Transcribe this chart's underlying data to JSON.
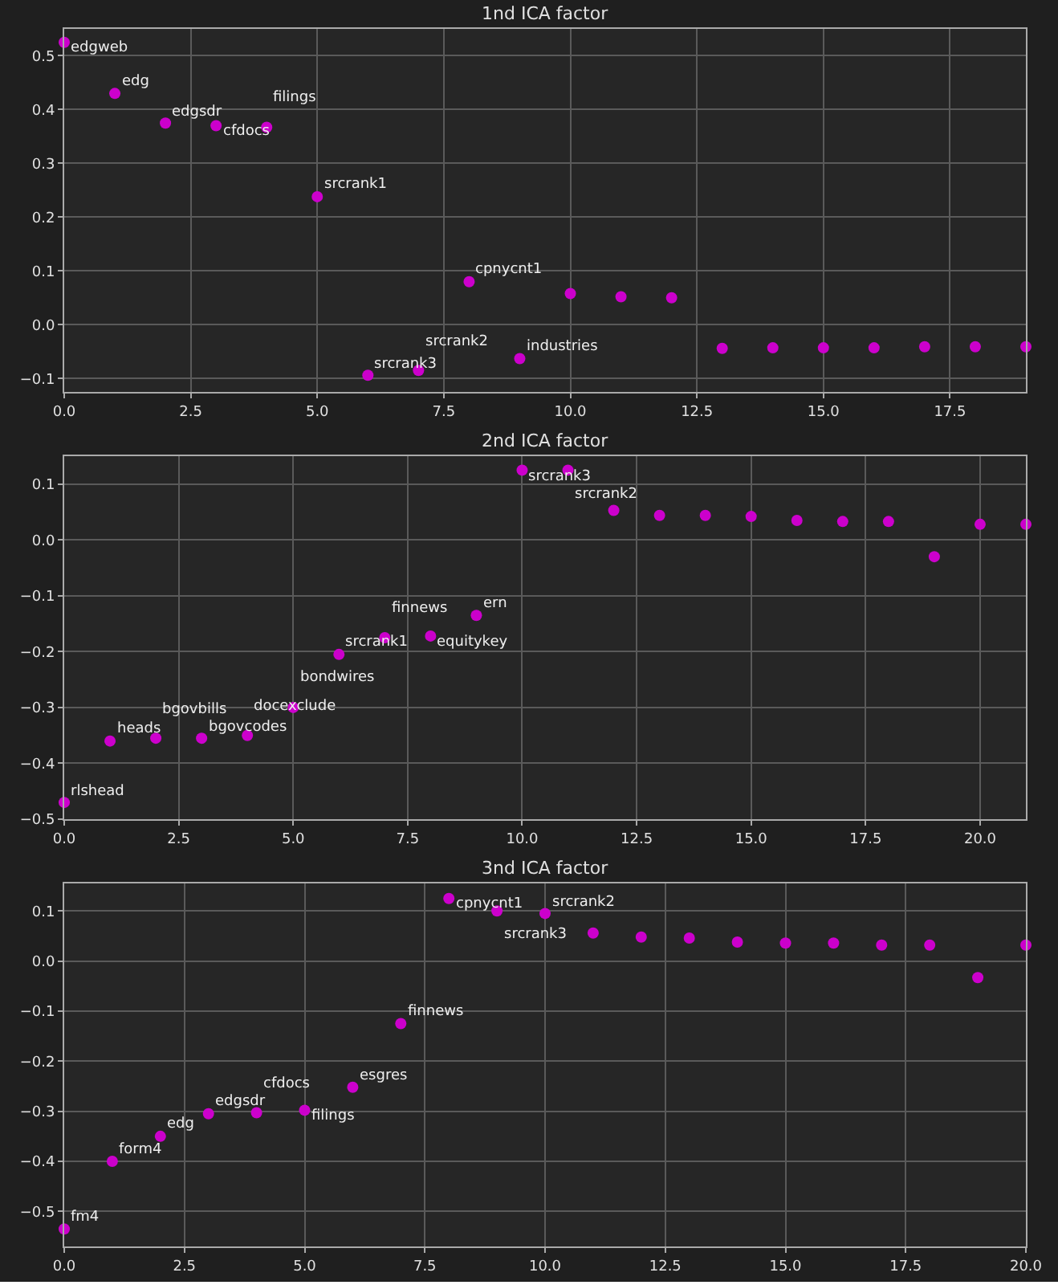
{
  "chart_data": [
    {
      "type": "scatter",
      "title": "1nd ICA factor",
      "color": "#cc00cc",
      "marker": "circle",
      "grid": true,
      "x": [
        0,
        1,
        2,
        3,
        4,
        5,
        6,
        7,
        8,
        9,
        10,
        11,
        12,
        13,
        14,
        15,
        16,
        17,
        18,
        19
      ],
      "values": [
        0.525,
        0.43,
        0.375,
        0.37,
        0.367,
        0.238,
        -0.094,
        -0.085,
        0.08,
        -0.063,
        0.058,
        0.052,
        0.05,
        -0.044,
        -0.043,
        -0.043,
        -0.043,
        -0.041,
        -0.041,
        -0.041
      ],
      "xlim": [
        0,
        19
      ],
      "ylim": [
        -0.125,
        0.55
      ],
      "xticks": [
        {
          "value": 0,
          "label": "0.0"
        },
        {
          "value": 2.5,
          "label": "2.5"
        },
        {
          "value": 5,
          "label": "5.0"
        },
        {
          "value": 7.5,
          "label": "7.5"
        },
        {
          "value": 10,
          "label": "10.0"
        },
        {
          "value": 12.5,
          "label": "12.5"
        },
        {
          "value": 15,
          "label": "15.0"
        },
        {
          "value": 17.5,
          "label": "17.5"
        }
      ],
      "yticks": [
        {
          "value": -0.1,
          "label": "−0.1"
        },
        {
          "value": 0,
          "label": "0.0"
        },
        {
          "value": 0.1,
          "label": "0.1"
        },
        {
          "value": 0.2,
          "label": "0.2"
        },
        {
          "value": 0.3,
          "label": "0.3"
        },
        {
          "value": 0.4,
          "label": "0.4"
        },
        {
          "value": 0.5,
          "label": "0.5"
        }
      ],
      "annotations": [
        {
          "text": "edgweb",
          "x": 0,
          "y": 0.525
        },
        {
          "text": "edg",
          "x": 1,
          "y": 0.43
        },
        {
          "text": "edgsdr",
          "x": 2,
          "y": 0.375
        },
        {
          "text": "cfdocs",
          "x": 3,
          "y": 0.37
        },
        {
          "text": "filings",
          "x": 4,
          "y": 0.367
        },
        {
          "text": "srcrank1",
          "x": 5,
          "y": 0.238
        },
        {
          "text": "srcrank3",
          "x": 6,
          "y": -0.094
        },
        {
          "text": "srcrank2",
          "x": 7,
          "y": -0.085
        },
        {
          "text": "cpnycnt1",
          "x": 8,
          "y": 0.08
        },
        {
          "text": "industries",
          "x": 9,
          "y": -0.063
        }
      ]
    },
    {
      "type": "scatter",
      "title": "2nd ICA factor",
      "color": "#cc00cc",
      "marker": "circle",
      "grid": true,
      "x": [
        0,
        1,
        2,
        3,
        4,
        5,
        6,
        7,
        8,
        9,
        10,
        11,
        12,
        13,
        14,
        15,
        16,
        17,
        18,
        19,
        20,
        21
      ],
      "values": [
        -0.47,
        -0.36,
        -0.355,
        -0.355,
        -0.35,
        -0.3,
        -0.205,
        -0.175,
        -0.172,
        -0.135,
        0.125,
        0.125,
        0.053,
        0.044,
        0.044,
        0.042,
        0.035,
        0.033,
        0.033,
        -0.03,
        0.028,
        0.028
      ],
      "xlim": [
        0,
        21
      ],
      "ylim": [
        -0.5,
        0.15
      ],
      "xticks": [
        {
          "value": 0,
          "label": "0.0"
        },
        {
          "value": 2.5,
          "label": "2.5"
        },
        {
          "value": 5,
          "label": "5.0"
        },
        {
          "value": 7.5,
          "label": "7.5"
        },
        {
          "value": 10,
          "label": "10.0"
        },
        {
          "value": 12.5,
          "label": "12.5"
        },
        {
          "value": 15,
          "label": "15.0"
        },
        {
          "value": 17.5,
          "label": "17.5"
        },
        {
          "value": 20,
          "label": "20.0"
        }
      ],
      "yticks": [
        {
          "value": -0.5,
          "label": "−0.5"
        },
        {
          "value": -0.4,
          "label": "−0.4"
        },
        {
          "value": -0.3,
          "label": "−0.3"
        },
        {
          "value": -0.2,
          "label": "−0.2"
        },
        {
          "value": -0.1,
          "label": "−0.1"
        },
        {
          "value": 0,
          "label": "0.0"
        },
        {
          "value": 0.1,
          "label": "0.1"
        }
      ],
      "annotations": [
        {
          "text": "rlshead",
          "x": 0,
          "y": -0.47
        },
        {
          "text": "heads",
          "x": 1,
          "y": -0.36
        },
        {
          "text": "bgovbills",
          "x": 2,
          "y": -0.355
        },
        {
          "text": "bgovcodes",
          "x": 3,
          "y": -0.355
        },
        {
          "text": "docexclude",
          "x": 4,
          "y": -0.35
        },
        {
          "text": "bondwires",
          "x": 5,
          "y": -0.3
        },
        {
          "text": "srcrank1",
          "x": 6,
          "y": -0.205
        },
        {
          "text": "finnews",
          "x": 7,
          "y": -0.175
        },
        {
          "text": "equitykey",
          "x": 8,
          "y": -0.172
        },
        {
          "text": "ern",
          "x": 9,
          "y": -0.135
        },
        {
          "text": "srcrank3",
          "x": 10,
          "y": 0.125
        },
        {
          "text": "srcrank2",
          "x": 11,
          "y": 0.125
        }
      ]
    },
    {
      "type": "scatter",
      "title": "3nd ICA factor",
      "color": "#cc00cc",
      "marker": "circle",
      "grid": true,
      "x": [
        0,
        1,
        2,
        3,
        4,
        5,
        6,
        7,
        8,
        9,
        10,
        11,
        12,
        13,
        14,
        15,
        16,
        17,
        18,
        19,
        20
      ],
      "values": [
        -0.535,
        -0.4,
        -0.35,
        -0.305,
        -0.303,
        -0.298,
        -0.252,
        -0.125,
        0.125,
        0.1,
        0.095,
        0.056,
        0.048,
        0.046,
        0.038,
        0.036,
        0.036,
        0.032,
        0.032,
        -0.033,
        0.032
      ],
      "xlim": [
        0,
        20
      ],
      "ylim": [
        -0.57,
        0.155
      ],
      "xticks": [
        {
          "value": 0,
          "label": "0.0"
        },
        {
          "value": 2.5,
          "label": "2.5"
        },
        {
          "value": 5,
          "label": "5.0"
        },
        {
          "value": 7.5,
          "label": "7.5"
        },
        {
          "value": 10,
          "label": "10.0"
        },
        {
          "value": 12.5,
          "label": "12.5"
        },
        {
          "value": 15,
          "label": "15.0"
        },
        {
          "value": 17.5,
          "label": "17.5"
        },
        {
          "value": 20,
          "label": "20.0"
        }
      ],
      "yticks": [
        {
          "value": -0.5,
          "label": "−0.5"
        },
        {
          "value": -0.4,
          "label": "−0.4"
        },
        {
          "value": -0.3,
          "label": "−0.3"
        },
        {
          "value": -0.2,
          "label": "−0.2"
        },
        {
          "value": -0.1,
          "label": "−0.1"
        },
        {
          "value": 0,
          "label": "0.0"
        },
        {
          "value": 0.1,
          "label": "0.1"
        }
      ],
      "annotations": [
        {
          "text": "fm4",
          "x": 0,
          "y": -0.535
        },
        {
          "text": "form4",
          "x": 1,
          "y": -0.4
        },
        {
          "text": "edg",
          "x": 2,
          "y": -0.35
        },
        {
          "text": "edgsdr",
          "x": 3,
          "y": -0.305
        },
        {
          "text": "cfdocs",
          "x": 4,
          "y": -0.303
        },
        {
          "text": "filings",
          "x": 5,
          "y": -0.298
        },
        {
          "text": "esgres",
          "x": 6,
          "y": -0.252
        },
        {
          "text": "finnews",
          "x": 7,
          "y": -0.125
        },
        {
          "text": "cpnycnt1",
          "x": 8,
          "y": 0.125
        },
        {
          "text": "srcrank3",
          "x": 9,
          "y": 0.1
        },
        {
          "text": "srcrank2",
          "x": 10,
          "y": 0.095
        }
      ]
    }
  ]
}
